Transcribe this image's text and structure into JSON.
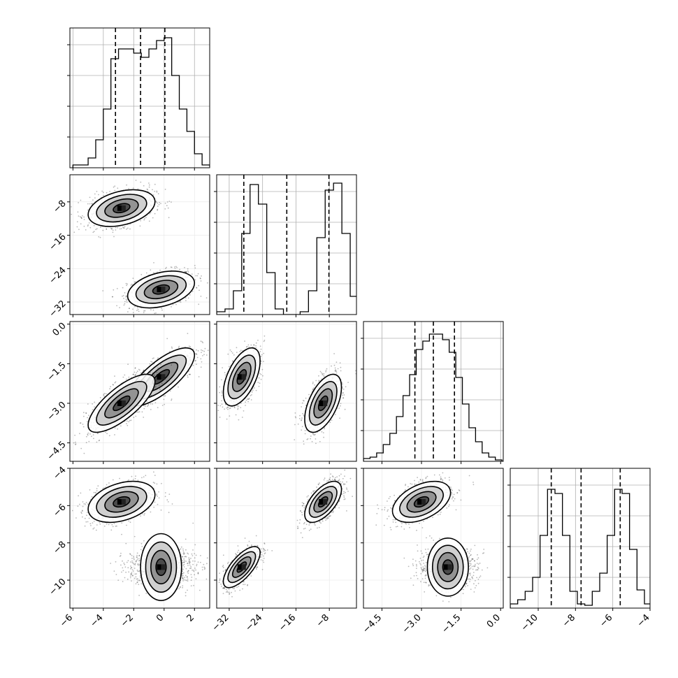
{
  "chart_data": {
    "type": "corner",
    "parameters": [
      {
        "range": [
          -6.2,
          3.0
        ],
        "ticks": [
          -6,
          -4,
          -2,
          0,
          2
        ],
        "tick_labels": [
          "−6",
          "−4",
          "−2",
          "0",
          "2"
        ],
        "quantiles": [
          -3.2,
          -1.55,
          0.05
        ],
        "histogram": {
          "bins": [
            -6.0,
            -5.5,
            -5.0,
            -4.5,
            -4.0,
            -3.5,
            -3.0,
            -2.5,
            -2.0,
            -1.5,
            -1.0,
            -0.5,
            0.0,
            0.5,
            1.0,
            1.5,
            2.0,
            2.5,
            3.0
          ],
          "counts": [
            0.02,
            0.02,
            0.07,
            0.2,
            0.42,
            0.78,
            0.85,
            0.85,
            0.82,
            0.79,
            0.85,
            0.91,
            0.93,
            0.66,
            0.42,
            0.26,
            0.1,
            0.02,
            0.01
          ]
        }
      },
      {
        "range": [
          -35,
          -1.5
        ],
        "ticks": [
          -8,
          -16,
          -24,
          -32
        ],
        "tick_labels": [
          "−32",
          "−24",
          "−16",
          "−8"
        ],
        "quantiles": [
          -28.5,
          -18.2,
          -8.1
        ],
        "histogram": {
          "bins": [
            -35,
            -33,
            -31,
            -29,
            -27,
            -25,
            -23,
            -21,
            -19,
            -17,
            -15,
            -13,
            -11,
            -9,
            -7,
            -5,
            -3
          ],
          "counts": [
            0.02,
            0.04,
            0.17,
            0.58,
            0.93,
            0.79,
            0.3,
            0.04,
            0.0,
            0.0,
            0.02,
            0.17,
            0.55,
            0.89,
            0.94,
            0.58,
            0.13
          ]
        }
      },
      {
        "range": [
          -5.2,
          0.1
        ],
        "ticks": [
          0.0,
          -1.5,
          -3.0,
          -4.5
        ],
        "tick_labels": [
          "−4.5",
          "−3.0",
          "−1.5",
          "0.0"
        ],
        "quantiles": [
          -3.25,
          -2.55,
          -1.75
        ],
        "histogram": {
          "bins": [
            -5.2,
            -4.95,
            -4.7,
            -4.45,
            -4.2,
            -3.95,
            -3.7,
            -3.45,
            -3.2,
            -2.95,
            -2.7,
            -2.45,
            -2.2,
            -1.95,
            -1.7,
            -1.45,
            -1.2,
            -0.95,
            -0.7,
            -0.45,
            -0.2
          ],
          "counts": [
            0.02,
            0.03,
            0.06,
            0.12,
            0.2,
            0.32,
            0.47,
            0.62,
            0.8,
            0.86,
            0.91,
            0.91,
            0.87,
            0.78,
            0.6,
            0.41,
            0.24,
            0.14,
            0.06,
            0.03,
            0.01
          ]
        }
      },
      {
        "range": [
          -11.5,
          -4.0
        ],
        "ticks": [
          -4,
          -6,
          -8,
          -10
        ],
        "tick_labels": [
          "−10",
          "−8",
          "−6",
          "−4"
        ],
        "quantiles": [
          -9.3,
          -7.7,
          -5.6
        ],
        "histogram": {
          "bins": [
            -11.5,
            -11.1,
            -10.7,
            -10.3,
            -9.9,
            -9.5,
            -9.1,
            -8.7,
            -8.3,
            -7.9,
            -7.5,
            -7.1,
            -6.7,
            -6.3,
            -5.9,
            -5.5,
            -5.1,
            -4.7,
            -4.3
          ],
          "counts": [
            0.03,
            0.06,
            0.12,
            0.22,
            0.52,
            0.85,
            0.82,
            0.52,
            0.12,
            0.03,
            0.02,
            0.12,
            0.25,
            0.52,
            0.85,
            0.82,
            0.42,
            0.13,
            0.03
          ]
        }
      }
    ],
    "clusters": [
      {
        "means": [
          -0.2,
          -29.0,
          -2.0,
          -9.3
        ],
        "sds": [
          1.1,
          2.2,
          0.55,
          0.55
        ],
        "corr": [
          [
            1,
            0.35,
            0.75,
            0.0
          ],
          [
            0.35,
            1,
            0.55,
            0.7
          ],
          [
            0.75,
            0.55,
            1,
            0.0
          ],
          [
            0.0,
            0.7,
            0.0,
            1
          ]
        ]
      },
      {
        "means": [
          -2.8,
          -9.5,
          -3.0,
          -5.8
        ],
        "sds": [
          1.1,
          2.2,
          0.55,
          0.55
        ],
        "corr": [
          [
            1,
            0.35,
            0.75,
            0.35
          ],
          [
            0.35,
            1,
            0.55,
            0.6
          ],
          [
            0.75,
            0.55,
            1,
            0.45
          ],
          [
            0.35,
            0.6,
            0.45,
            1
          ]
        ]
      }
    ],
    "histogram_grid_fractions": [
      0.22,
      0.44,
      0.66,
      0.88
    ],
    "colors": {
      "line": "#000000",
      "grid": "#b0b0b0",
      "frame": "#000000"
    }
  }
}
